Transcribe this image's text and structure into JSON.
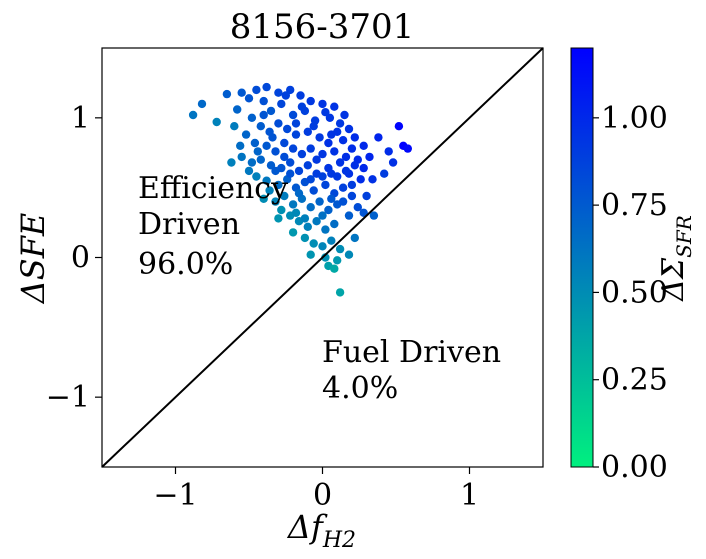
{
  "chart_data": {
    "type": "scatter",
    "title": "8156-3701",
    "xlabel": "Δf",
    "xlabel_sub": "H2",
    "ylabel": "ΔSFE",
    "xlim": [
      -1.5,
      1.5
    ],
    "ylim": [
      -1.5,
      1.5
    ],
    "xticks": [
      -1,
      0,
      1
    ],
    "xtick_labels": [
      "−1",
      "0",
      "1"
    ],
    "yticks": [
      -1,
      0,
      1
    ],
    "ytick_labels": [
      "−1",
      "0",
      "1"
    ],
    "diagonal_line": true,
    "grid": false,
    "annotations": {
      "efficiency": [
        "Efficiency",
        "Driven",
        "96.0%"
      ],
      "fuel": [
        "Fuel Driven",
        "4.0%"
      ]
    },
    "colorbar": {
      "label": "ΔΣ",
      "label_sub": "SFR",
      "range": [
        0,
        1.2
      ],
      "ticks": [
        0.0,
        0.25,
        0.5,
        0.75,
        1.0
      ],
      "tick_labels": [
        "0.00",
        "0.25",
        "0.50",
        "0.75",
        "1.00"
      ],
      "colors": [
        "#00f07f",
        "#0000ff"
      ]
    },
    "points": [
      [
        -0.88,
        1.02,
        0.62
      ],
      [
        -0.82,
        1.1,
        0.68
      ],
      [
        -0.65,
        1.17,
        0.74
      ],
      [
        -0.58,
        1.06,
        0.7
      ],
      [
        -0.72,
        0.97,
        0.55
      ],
      [
        -0.5,
        1.14,
        0.78
      ],
      [
        -0.45,
        1.2,
        0.82
      ],
      [
        -0.38,
        1.22,
        0.84
      ],
      [
        -0.3,
        1.18,
        0.86
      ],
      [
        -0.22,
        1.2,
        0.88
      ],
      [
        -0.15,
        1.16,
        0.9
      ],
      [
        -0.08,
        1.12,
        0.92
      ],
      [
        0.0,
        1.1,
        0.94
      ],
      [
        0.08,
        1.08,
        0.95
      ],
      [
        -0.4,
        1.12,
        0.8
      ],
      [
        -0.35,
        1.05,
        0.76
      ],
      [
        -0.28,
        1.1,
        0.85
      ],
      [
        -0.2,
        1.02,
        0.83
      ],
      [
        -0.12,
        1.05,
        0.88
      ],
      [
        -0.05,
        0.98,
        0.9
      ],
      [
        0.05,
        1.0,
        0.93
      ],
      [
        0.12,
        0.96,
        0.92
      ],
      [
        0.18,
        0.92,
        0.95
      ],
      [
        -0.48,
        1.0,
        0.72
      ],
      [
        -0.42,
        0.94,
        0.74
      ],
      [
        -0.36,
        0.9,
        0.78
      ],
      [
        -0.3,
        0.96,
        0.82
      ],
      [
        -0.24,
        0.92,
        0.84
      ],
      [
        -0.18,
        0.88,
        0.86
      ],
      [
        -0.1,
        0.9,
        0.9
      ],
      [
        -0.02,
        0.86,
        0.92
      ],
      [
        0.06,
        0.88,
        0.94
      ],
      [
        0.14,
        0.84,
        0.96
      ],
      [
        0.22,
        0.86,
        0.98
      ],
      [
        0.28,
        0.8,
        1.0
      ],
      [
        -0.52,
        0.88,
        0.7
      ],
      [
        -0.46,
        0.82,
        0.72
      ],
      [
        -0.38,
        0.8,
        0.76
      ],
      [
        -0.32,
        0.76,
        0.8
      ],
      [
        -0.26,
        0.82,
        0.84
      ],
      [
        -0.2,
        0.78,
        0.86
      ],
      [
        -0.14,
        0.74,
        0.88
      ],
      [
        -0.08,
        0.78,
        0.9
      ],
      [
        0.0,
        0.74,
        0.93
      ],
      [
        0.08,
        0.76,
        0.95
      ],
      [
        0.16,
        0.72,
        0.97
      ],
      [
        0.24,
        0.7,
        0.99
      ],
      [
        0.32,
        0.72,
        1.02
      ],
      [
        -0.55,
        0.72,
        0.62
      ],
      [
        -0.48,
        0.68,
        0.66
      ],
      [
        -0.42,
        0.7,
        0.7
      ],
      [
        -0.35,
        0.66,
        0.74
      ],
      [
        -0.28,
        0.64,
        0.78
      ],
      [
        -0.22,
        0.68,
        0.82
      ],
      [
        -0.16,
        0.62,
        0.86
      ],
      [
        -0.1,
        0.66,
        0.88
      ],
      [
        -0.04,
        0.6,
        0.9
      ],
      [
        0.04,
        0.64,
        0.94
      ],
      [
        0.1,
        0.58,
        0.92
      ],
      [
        0.18,
        0.6,
        0.96
      ],
      [
        0.26,
        0.56,
        0.98
      ],
      [
        -0.45,
        0.58,
        0.56
      ],
      [
        -0.38,
        0.55,
        0.6
      ],
      [
        -0.3,
        0.52,
        0.66
      ],
      [
        -0.24,
        0.56,
        0.72
      ],
      [
        -0.18,
        0.5,
        0.76
      ],
      [
        -0.12,
        0.54,
        0.8
      ],
      [
        -0.06,
        0.48,
        0.82
      ],
      [
        0.02,
        0.52,
        0.86
      ],
      [
        0.08,
        0.46,
        0.84
      ],
      [
        0.14,
        0.5,
        0.88
      ],
      [
        0.2,
        0.44,
        0.86
      ],
      [
        -0.4,
        0.42,
        0.5
      ],
      [
        -0.32,
        0.4,
        0.54
      ],
      [
        -0.26,
        0.44,
        0.58
      ],
      [
        -0.2,
        0.38,
        0.6
      ],
      [
        -0.14,
        0.42,
        0.64
      ],
      [
        -0.08,
        0.36,
        0.66
      ],
      [
        -0.02,
        0.4,
        0.7
      ],
      [
        0.04,
        0.34,
        0.72
      ],
      [
        0.1,
        0.38,
        0.76
      ],
      [
        -0.3,
        0.28,
        0.46
      ],
      [
        -0.22,
        0.3,
        0.5
      ],
      [
        -0.16,
        0.26,
        0.52
      ],
      [
        -0.1,
        0.22,
        0.56
      ],
      [
        -0.04,
        0.26,
        0.6
      ],
      [
        0.02,
        0.2,
        0.62
      ],
      [
        0.08,
        0.24,
        0.66
      ],
      [
        -0.2,
        0.18,
        0.44
      ],
      [
        -0.12,
        0.14,
        0.48
      ],
      [
        -0.06,
        0.1,
        0.5
      ],
      [
        0.0,
        0.08,
        0.54
      ],
      [
        0.06,
        0.12,
        0.56
      ],
      [
        0.12,
        0.06,
        0.5
      ],
      [
        -0.08,
        0.02,
        0.46
      ],
      [
        0.02,
        0.0,
        0.48
      ],
      [
        0.1,
        -0.02,
        0.44
      ],
      [
        0.04,
        -0.06,
        0.4
      ],
      [
        0.08,
        -0.08,
        0.36
      ],
      [
        0.12,
        -0.25,
        0.38
      ],
      [
        0.18,
        0.02,
        0.52
      ],
      [
        0.22,
        0.14,
        0.62
      ],
      [
        0.28,
        0.32,
        0.78
      ],
      [
        0.35,
        0.3,
        0.72
      ],
      [
        0.42,
        0.6,
        0.9
      ],
      [
        0.48,
        0.68,
        0.96
      ],
      [
        0.52,
        0.94,
        1.18
      ],
      [
        0.55,
        0.8,
        1.2
      ],
      [
        0.58,
        0.78,
        1.16
      ],
      [
        0.45,
        0.76,
        0.98
      ],
      [
        0.38,
        0.86,
        1.02
      ],
      [
        -0.6,
        0.94,
        0.58
      ],
      [
        -0.55,
        1.18,
        0.76
      ],
      [
        -0.25,
        1.16,
        0.88
      ],
      [
        0.02,
        1.04,
        0.92
      ],
      [
        0.15,
        1.02,
        0.94
      ],
      [
        -0.18,
        0.96,
        0.86
      ],
      [
        -0.06,
        0.94,
        0.9
      ],
      [
        0.1,
        0.9,
        0.94
      ],
      [
        0.2,
        0.78,
        0.98
      ],
      [
        -0.34,
        0.86,
        0.78
      ],
      [
        -0.44,
        0.76,
        0.7
      ],
      [
        -0.5,
        0.62,
        0.6
      ],
      [
        -0.36,
        0.48,
        0.56
      ],
      [
        -0.28,
        0.34,
        0.48
      ],
      [
        -0.18,
        0.32,
        0.52
      ],
      [
        -0.12,
        0.28,
        0.56
      ],
      [
        0.0,
        0.3,
        0.64
      ],
      [
        0.06,
        0.42,
        0.76
      ],
      [
        0.14,
        0.4,
        0.8
      ],
      [
        0.2,
        0.52,
        0.9
      ],
      [
        0.28,
        0.64,
        1.0
      ],
      [
        0.34,
        0.56,
        0.96
      ],
      [
        0.3,
        0.44,
        0.88
      ],
      [
        0.24,
        0.36,
        0.82
      ],
      [
        -0.04,
        0.7,
        0.92
      ],
      [
        0.04,
        0.82,
        0.96
      ],
      [
        0.12,
        0.68,
        0.95
      ],
      [
        -0.26,
        0.72,
        0.82
      ],
      [
        -0.32,
        0.62,
        0.76
      ],
      [
        -0.56,
        0.8,
        0.66
      ],
      [
        -0.62,
        0.68,
        0.56
      ],
      [
        -0.4,
        1.02,
        0.78
      ],
      [
        -0.14,
        1.08,
        0.88
      ],
      [
        0.16,
        0.62,
        0.94
      ],
      [
        0.22,
        0.66,
        0.97
      ],
      [
        -0.22,
        0.6,
        0.8
      ],
      [
        -0.08,
        0.56,
        0.84
      ],
      [
        0.0,
        0.58,
        0.88
      ],
      [
        0.18,
        0.3,
        0.74
      ],
      [
        -0.16,
        0.46,
        0.68
      ],
      [
        0.06,
        0.6,
        0.92
      ]
    ]
  }
}
